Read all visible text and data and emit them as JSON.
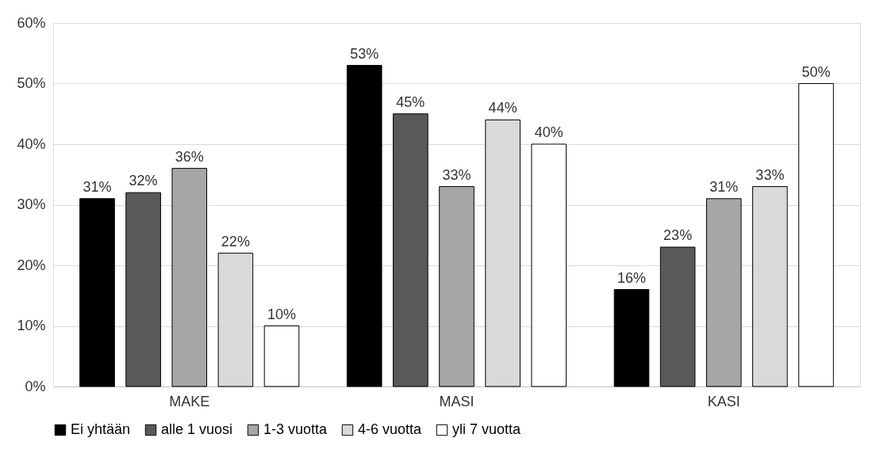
{
  "chart_data": {
    "type": "bar",
    "categories": [
      "MAKE",
      "MASI",
      "KASI"
    ],
    "series": [
      {
        "name": "Ei yhtään",
        "color": "#000000",
        "values": [
          31,
          53,
          16
        ],
        "value_labels": [
          "31%",
          "53%",
          "16%"
        ]
      },
      {
        "name": "alle 1 vuosi",
        "color": "#595959",
        "values": [
          32,
          45,
          23
        ],
        "value_labels": [
          "32%",
          "45%",
          "23%"
        ]
      },
      {
        "name": "1-3 vuotta",
        "color": "#a6a6a6",
        "values": [
          36,
          33,
          31
        ],
        "value_labels": [
          "36%",
          "33%",
          "31%"
        ]
      },
      {
        "name": "4-6 vuotta",
        "color": "#d9d9d9",
        "values": [
          22,
          44,
          33
        ],
        "value_labels": [
          "22%",
          "44%",
          "33%"
        ]
      },
      {
        "name": "yli 7 vuotta",
        "color": "#ffffff",
        "values": [
          10,
          40,
          50
        ],
        "value_labels": [
          "10%",
          "40%",
          "50%"
        ]
      }
    ],
    "ylim": [
      0,
      60
    ],
    "yticks": [
      {
        "value": 0,
        "label": "0%"
      },
      {
        "value": 10,
        "label": "10%"
      },
      {
        "value": 20,
        "label": "20%"
      },
      {
        "value": 30,
        "label": "30%"
      },
      {
        "value": 40,
        "label": "40%"
      },
      {
        "value": 50,
        "label": "50%"
      },
      {
        "value": 60,
        "label": "60%"
      }
    ],
    "grid": "y",
    "legend": "bottom"
  }
}
